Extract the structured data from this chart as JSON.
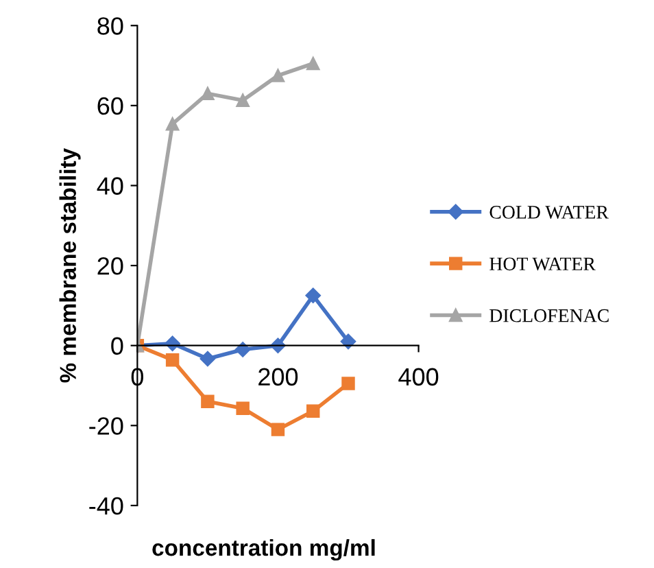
{
  "chart_data": {
    "type": "line",
    "xlabel": "concentration mg/ml",
    "ylabel": "% membrane stability",
    "x": [
      0,
      50,
      100,
      150,
      200,
      250,
      300
    ],
    "series": [
      {
        "name": "COLD WATER",
        "color": "#4472c4",
        "marker": "diamond",
        "values": [
          0,
          0.5,
          -3.3,
          -1,
          0,
          12.5,
          1
        ]
      },
      {
        "name": "HOT WATER",
        "color": "#ed7d31",
        "marker": "square",
        "values": [
          0,
          -3.6,
          -14,
          -15.7,
          -21,
          -16.4,
          -9.5
        ]
      },
      {
        "name": "DICLOFENAC",
        "color": "#a5a5a5",
        "marker": "triangle",
        "x": [
          0,
          50,
          100,
          150,
          200,
          250
        ],
        "values": [
          0,
          55.4,
          63,
          61.3,
          67.5,
          70.5
        ]
      }
    ],
    "xlim": [
      0,
      400
    ],
    "xticks": [
      0,
      200,
      400
    ],
    "ylim": [
      -40,
      80
    ],
    "yticks": [
      -40,
      -20,
      0,
      20,
      40,
      60,
      80
    ],
    "grid": false,
    "legend": "right"
  }
}
